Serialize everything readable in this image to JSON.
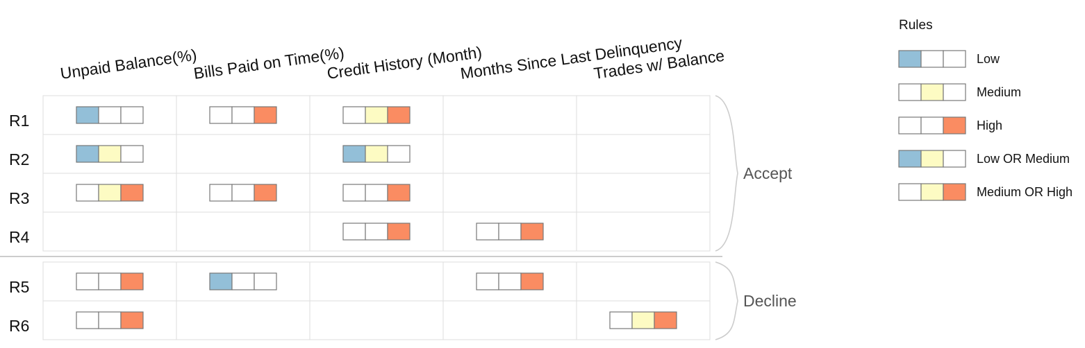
{
  "columns": [
    "Unpaid Balance(%)",
    "Bills Paid on Time(%)",
    "Credit History (Month)",
    "Months Since Last Delinquency",
    "Trades w/ Balance"
  ],
  "colors": {
    "low": "#93bfd8",
    "medium": "#fdfbc3",
    "high": "#fa8c62",
    "empty": "#ffffff",
    "box_stroke": "#777777",
    "grid": "#dddddd",
    "divider": "#bbbbbb",
    "brace": "#cccccc",
    "label": "#555555"
  },
  "groups": [
    {
      "label": "Accept",
      "rules": [
        {
          "name": "R1",
          "cells": [
            [
              1,
              0,
              0
            ],
            [
              0,
              0,
              1
            ],
            [
              0,
              1,
              1
            ],
            null,
            null
          ]
        },
        {
          "name": "R2",
          "cells": [
            [
              1,
              1,
              0
            ],
            null,
            [
              1,
              1,
              0
            ],
            null,
            null
          ]
        },
        {
          "name": "R3",
          "cells": [
            [
              0,
              1,
              1
            ],
            [
              0,
              0,
              1
            ],
            [
              0,
              0,
              1
            ],
            null,
            null
          ]
        },
        {
          "name": "R4",
          "cells": [
            null,
            null,
            [
              0,
              0,
              1
            ],
            [
              0,
              0,
              1
            ],
            null
          ]
        }
      ]
    },
    {
      "label": "Decline",
      "rules": [
        {
          "name": "R5",
          "cells": [
            [
              0,
              0,
              1
            ],
            [
              1,
              0,
              0
            ],
            null,
            [
              0,
              0,
              1
            ],
            null
          ]
        },
        {
          "name": "R6",
          "cells": [
            [
              0,
              0,
              1
            ],
            null,
            null,
            null,
            [
              0,
              1,
              1
            ]
          ]
        }
      ]
    }
  ],
  "legend": {
    "title": "Rules",
    "items": [
      {
        "label": "Low",
        "pattern": [
          1,
          0,
          0
        ]
      },
      {
        "label": "Medium",
        "pattern": [
          0,
          1,
          0
        ]
      },
      {
        "label": "High",
        "pattern": [
          0,
          0,
          1
        ]
      },
      {
        "label": "Low OR Medium",
        "pattern": [
          1,
          1,
          0
        ]
      },
      {
        "label": "Medium OR High",
        "pattern": [
          0,
          1,
          1
        ]
      }
    ]
  }
}
